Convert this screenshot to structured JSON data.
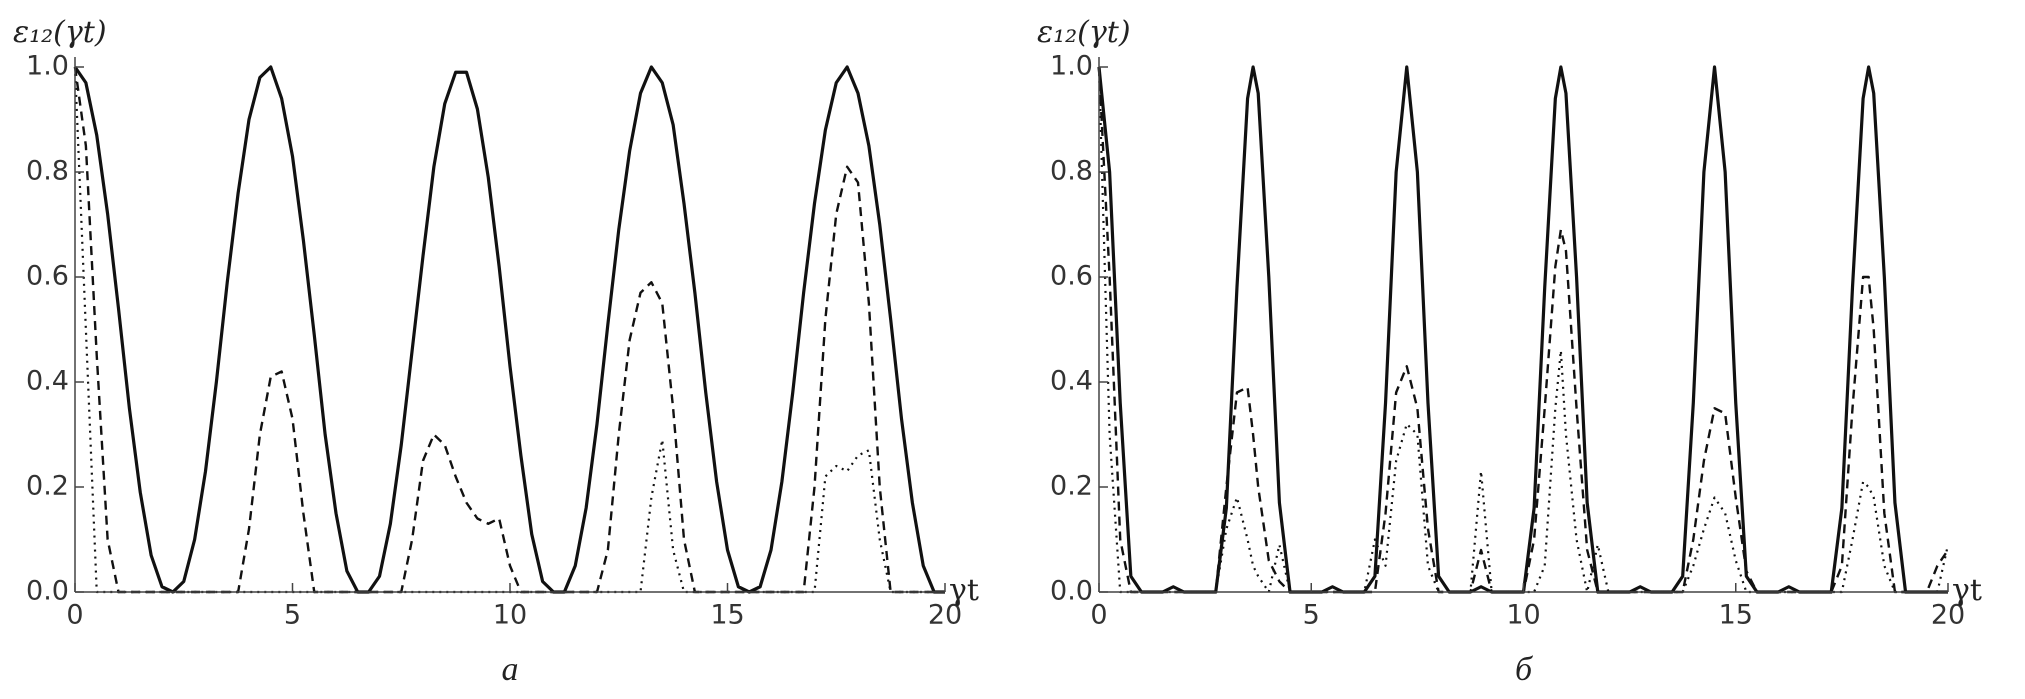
{
  "chart_data": [
    {
      "type": "line",
      "ylabel": "ε₁₂(γt)",
      "xlabel": "γt",
      "caption": "a",
      "xlim": [
        0,
        20
      ],
      "xticks": [
        0,
        5,
        10,
        15,
        20
      ],
      "ylim": [
        0,
        1
      ],
      "yticks": [
        {
          "value": 0,
          "label": "0.0"
        },
        {
          "value": 0.2,
          "label": "0.2"
        },
        {
          "value": 0.4,
          "label": "0.4"
        },
        {
          "value": 0.6,
          "label": "0.6"
        },
        {
          "value": 0.8,
          "label": "0.8"
        },
        {
          "value": 1,
          "label": "1.0"
        }
      ],
      "x": [
        0,
        0.25,
        0.5,
        0.75,
        1,
        1.25,
        1.5,
        1.75,
        2,
        2.25,
        2.5,
        2.75,
        3,
        3.25,
        3.5,
        3.75,
        4,
        4.25,
        4.5,
        4.75,
        5,
        5.25,
        5.5,
        5.75,
        6,
        6.25,
        6.5,
        6.75,
        7,
        7.25,
        7.5,
        7.75,
        8,
        8.25,
        8.5,
        8.75,
        9,
        9.25,
        9.5,
        9.75,
        10,
        10.25,
        10.5,
        10.75,
        11,
        11.25,
        11.5,
        11.75,
        12,
        12.25,
        12.5,
        12.75,
        13,
        13.25,
        13.5,
        13.75,
        14,
        14.25,
        14.5,
        14.75,
        15,
        15.25,
        15.5,
        15.75,
        16,
        16.25,
        16.5,
        16.75,
        17,
        17.25,
        17.5,
        17.75,
        18,
        18.25,
        18.5,
        18.75,
        19,
        19.25,
        19.5,
        19.75,
        20
      ],
      "series": [
        {
          "style": "solid",
          "color": "#111111",
          "values": [
            1,
            0.97,
            0.87,
            0.72,
            0.54,
            0.35,
            0.19,
            0.07,
            0.01,
            0,
            0.02,
            0.1,
            0.23,
            0.4,
            0.59,
            0.76,
            0.9,
            0.98,
            1,
            0.94,
            0.83,
            0.67,
            0.49,
            0.3,
            0.15,
            0.04,
            0,
            0,
            0.03,
            0.13,
            0.28,
            0.46,
            0.64,
            0.81,
            0.93,
            0.99,
            0.99,
            0.92,
            0.79,
            0.62,
            0.43,
            0.26,
            0.11,
            0.02,
            0,
            0,
            0.05,
            0.16,
            0.32,
            0.51,
            0.69,
            0.84,
            0.95,
            1,
            0.97,
            0.89,
            0.74,
            0.57,
            0.38,
            0.21,
            0.08,
            0.01,
            0,
            0.01,
            0.08,
            0.21,
            0.38,
            0.57,
            0.74,
            0.88,
            0.97,
            1,
            0.95,
            0.85,
            0.7,
            0.52,
            0.33,
            0.17,
            0.05,
            0,
            0
          ]
        },
        {
          "style": "dashed",
          "color": "#111111",
          "values": [
            1,
            0.85,
            0.45,
            0.1,
            0,
            0,
            0,
            0,
            0,
            0,
            0,
            0,
            0,
            0,
            0,
            0,
            0.12,
            0.3,
            0.41,
            0.42,
            0.33,
            0.15,
            0,
            0,
            0,
            0,
            0,
            0,
            0,
            0,
            0,
            0.1,
            0.25,
            0.3,
            0.28,
            0.22,
            0.17,
            0.14,
            0.13,
            0.14,
            0.05,
            0,
            0,
            0,
            0,
            0,
            0,
            0,
            0,
            0.08,
            0.3,
            0.48,
            0.57,
            0.59,
            0.55,
            0.35,
            0.1,
            0,
            0,
            0,
            0,
            0,
            0,
            0,
            0,
            0,
            0,
            0,
            0.2,
            0.52,
            0.72,
            0.81,
            0.78,
            0.55,
            0.2,
            0,
            0,
            0,
            0,
            0,
            0
          ]
        },
        {
          "style": "dotted",
          "color": "#111111",
          "values": [
            1,
            0.5,
            0,
            0,
            0,
            0,
            0,
            0,
            0,
            0,
            0,
            0,
            0,
            0,
            0,
            0,
            0,
            0,
            0,
            0,
            0,
            0,
            0,
            0,
            0,
            0,
            0,
            0,
            0,
            0,
            0,
            0,
            0,
            0,
            0,
            0,
            0,
            0,
            0,
            0,
            0,
            0,
            0,
            0,
            0,
            0,
            0,
            0,
            0,
            0,
            0,
            0,
            0,
            0.18,
            0.29,
            0.08,
            0,
            0,
            0,
            0,
            0,
            0,
            0,
            0,
            0,
            0,
            0,
            0,
            0,
            0.22,
            0.24,
            0.23,
            0.26,
            0.27,
            0.1,
            0,
            0,
            0,
            0,
            0,
            0
          ]
        }
      ]
    },
    {
      "type": "line",
      "ylabel": "ε₁₂(γt)",
      "xlabel": "γt",
      "caption": "б",
      "xlim": [
        0,
        20
      ],
      "xticks": [
        0,
        5,
        10,
        15,
        20
      ],
      "ylim": [
        0,
        1
      ],
      "yticks": [
        {
          "value": 0,
          "label": "0.0"
        },
        {
          "value": 0.2,
          "label": "0.2"
        },
        {
          "value": 0.4,
          "label": "0.4"
        },
        {
          "value": 0.6,
          "label": "0.6"
        },
        {
          "value": 0.8,
          "label": "0.8"
        },
        {
          "value": 1,
          "label": "1.0"
        }
      ],
      "x": [
        0,
        0.25,
        0.5,
        0.75,
        1,
        1.25,
        1.5,
        1.75,
        2,
        2.25,
        2.5,
        2.75,
        3,
        3.25,
        3.5,
        3.63,
        3.75,
        4,
        4.25,
        4.5,
        4.75,
        5,
        5.25,
        5.5,
        5.75,
        6,
        6.25,
        6.5,
        6.75,
        7,
        7.25,
        7.5,
        7.75,
        8,
        8.25,
        8.5,
        8.75,
        9,
        9.25,
        9.5,
        9.75,
        10,
        10.25,
        10.5,
        10.75,
        10.88,
        11,
        11.25,
        11.5,
        11.75,
        12,
        12.25,
        12.5,
        12.75,
        13,
        13.25,
        13.5,
        13.75,
        14,
        14.25,
        14.5,
        14.75,
        15,
        15.25,
        15.5,
        15.75,
        16,
        16.25,
        16.5,
        16.75,
        17,
        17.25,
        17.5,
        17.75,
        18,
        18.13,
        18.25,
        18.5,
        18.75,
        19,
        19.25,
        19.5,
        19.75,
        20
      ],
      "series": [
        {
          "style": "solid",
          "color": "#111111",
          "values": [
            1,
            0.8,
            0.36,
            0.03,
            0,
            0,
            0,
            0.01,
            0,
            0,
            0,
            0,
            0.16,
            0.58,
            0.94,
            1,
            0.95,
            0.6,
            0.17,
            0,
            0,
            0,
            0,
            0.01,
            0,
            0,
            0,
            0.03,
            0.36,
            0.8,
            1,
            0.8,
            0.36,
            0.03,
            0,
            0,
            0,
            0.01,
            0,
            0,
            0,
            0,
            0.16,
            0.58,
            0.94,
            1,
            0.95,
            0.6,
            0.17,
            0,
            0,
            0,
            0,
            0.01,
            0,
            0,
            0,
            0.03,
            0.36,
            0.8,
            1,
            0.8,
            0.36,
            0.03,
            0,
            0,
            0,
            0.01,
            0,
            0,
            0,
            0,
            0.16,
            0.58,
            0.94,
            1,
            0.95,
            0.6,
            0.17,
            0,
            0,
            0,
            0,
            0
          ]
        },
        {
          "style": "dashed",
          "color": "#111111",
          "values": [
            1,
            0.6,
            0.1,
            0,
            0,
            0,
            0,
            0,
            0,
            0,
            0,
            0,
            0.2,
            0.38,
            0.39,
            0.3,
            0.2,
            0.06,
            0.02,
            0,
            0,
            0,
            0,
            0,
            0,
            0,
            0,
            0,
            0.15,
            0.38,
            0.43,
            0.35,
            0.12,
            0,
            0,
            0,
            0,
            0.08,
            0,
            0,
            0,
            0,
            0.1,
            0.35,
            0.62,
            0.69,
            0.65,
            0.35,
            0.08,
            0,
            0,
            0,
            0,
            0,
            0,
            0,
            0,
            0,
            0.1,
            0.25,
            0.35,
            0.34,
            0.18,
            0.04,
            0,
            0,
            0,
            0,
            0,
            0,
            0,
            0,
            0.05,
            0.35,
            0.6,
            0.6,
            0.5,
            0.15,
            0,
            0,
            0,
            0,
            0.05,
            0.08
          ]
        },
        {
          "style": "dotted",
          "color": "#111111",
          "values": [
            1,
            0.3,
            0,
            0,
            0,
            0,
            0,
            0,
            0,
            0,
            0,
            0,
            0.12,
            0.18,
            0.1,
            0.05,
            0.03,
            0,
            0.09,
            0,
            0,
            0,
            0,
            0,
            0,
            0,
            0,
            0.1,
            0.05,
            0.25,
            0.32,
            0.3,
            0.05,
            0,
            0,
            0,
            0,
            0.23,
            0,
            0,
            0,
            0,
            0,
            0.05,
            0.35,
            0.46,
            0.3,
            0.1,
            0,
            0.09,
            0,
            0,
            0,
            0,
            0,
            0,
            0,
            0,
            0.05,
            0.12,
            0.18,
            0.15,
            0.06,
            0,
            0,
            0,
            0,
            0,
            0,
            0,
            0,
            0,
            0,
            0.1,
            0.21,
            0.2,
            0.18,
            0.05,
            0,
            0,
            0,
            0,
            0,
            0.09
          ]
        }
      ]
    }
  ]
}
